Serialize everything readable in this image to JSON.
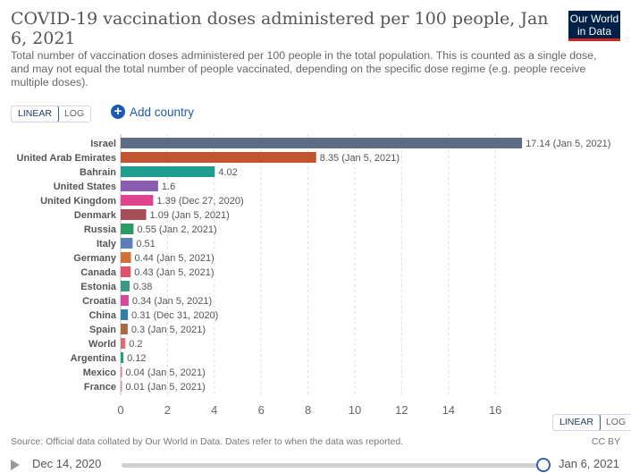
{
  "header": {
    "title": "COVID-19 vaccination doses administered per 100 people, Jan 6, 2021",
    "subtitle": "Total number of vaccination doses administered per 100 people in the total population. This is counted as a single dose, and may not equal the total number of people vaccinated, depending on the specific dose regime (e.g. people receive multiple doses).",
    "logo_line1": "Our World",
    "logo_line2": "in Data",
    "logo_colors": {
      "background": "#002147",
      "accent": "#ce261e"
    }
  },
  "controls": {
    "linear_label": "LINEAR",
    "log_label": "LOG",
    "add_country_label": "Add country",
    "add_country_icon": "plus-circle-icon"
  },
  "chart_data": {
    "type": "bar",
    "orientation": "horizontal",
    "title": "",
    "xlabel": "",
    "ylabel": "",
    "xlim": [
      0,
      17.14
    ],
    "x_ticks": [
      0,
      2,
      4,
      6,
      8,
      10,
      12,
      14,
      16
    ],
    "grid": true,
    "categories": [
      "Israel",
      "United Arab Emirates",
      "Bahrain",
      "United States",
      "United Kingdom",
      "Denmark",
      "Russia",
      "Italy",
      "Germany",
      "Canada",
      "Estonia",
      "Croatia",
      "China",
      "Spain",
      "World",
      "Argentina",
      "Mexico",
      "France"
    ],
    "values": [
      17.14,
      8.35,
      4.02,
      1.6,
      1.39,
      1.09,
      0.55,
      0.51,
      0.44,
      0.43,
      0.38,
      0.34,
      0.31,
      0.3,
      0.2,
      0.12,
      0.04,
      0.01
    ],
    "date_notes": [
      "(Jan 5, 2021)",
      "(Jan 5, 2021)",
      "",
      "",
      "(Dec 27, 2020)",
      "(Jan 5, 2021)",
      "(Jan 2, 2021)",
      "",
      "(Jan 5, 2021)",
      "(Jan 5, 2021)",
      "",
      "(Jan 5, 2021)",
      "(Dec 31, 2020)",
      "(Jan 5, 2021)",
      "",
      "",
      "(Jan 5, 2021)",
      "(Jan 5, 2021)"
    ],
    "colors": [
      "#5b6c85",
      "#c05530",
      "#1f9e8f",
      "#8a5cb0",
      "#e0438a",
      "#a64d5a",
      "#2f9966",
      "#5b80b8",
      "#d3703a",
      "#e0526a",
      "#3a9a85",
      "#d4479e",
      "#2f80a8",
      "#a86840",
      "#d8707a",
      "#2a9a80",
      "#d07ab0",
      "#cf9a9a"
    ]
  },
  "footer": {
    "source": "Source: Official data collated by Our World in Data. Dates refer to when the data was reported.",
    "license": "CC BY"
  },
  "timeline": {
    "start_label": "Dec 14, 2020",
    "end_label": "Jan 6, 2021"
  }
}
